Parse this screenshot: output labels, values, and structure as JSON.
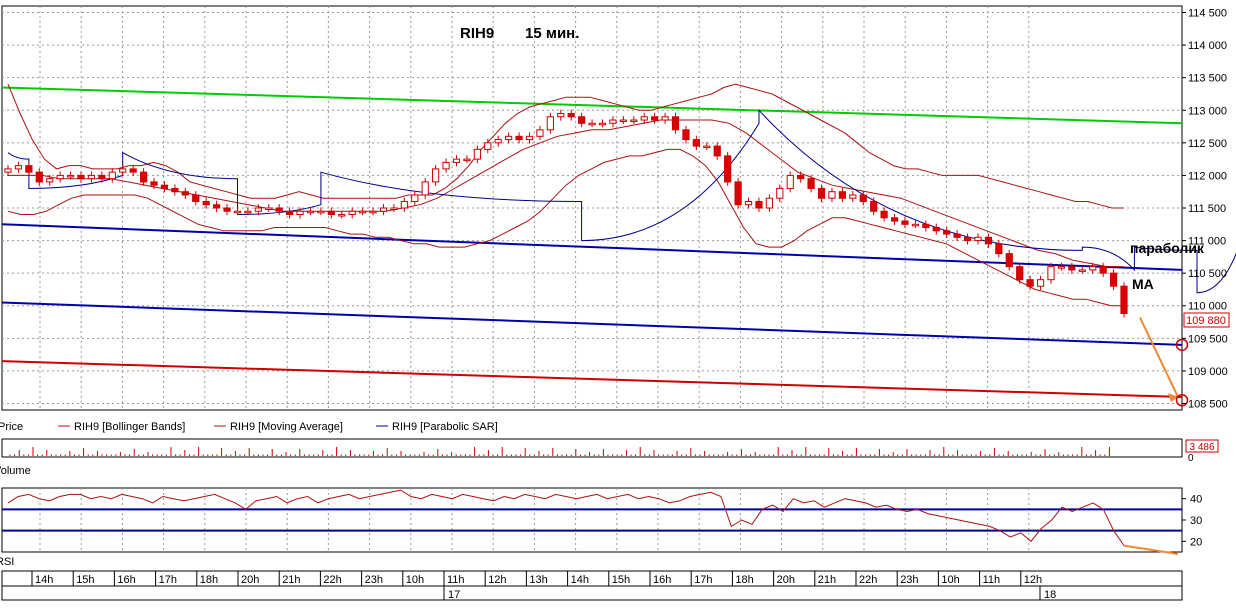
{
  "chart_data": [
    {
      "type": "candlestick",
      "title": "RIH9",
      "timeframe": "15 мин.",
      "y_ticks": [
        "114 500",
        "114 000",
        "113 500",
        "113 000",
        "112 500",
        "112 000",
        "111 500",
        "111 000",
        "110 500",
        "110 000",
        "109 500",
        "109 000",
        "108 500"
      ],
      "ylim": [
        108400,
        114600
      ],
      "last_price_label": "109 880",
      "last_price": 109880,
      "legend": [
        {
          "name": "Price",
          "color": "#cc0000"
        },
        {
          "name": "RIH9 [Bollinger Bands]",
          "color": "#aa1111"
        },
        {
          "name": "RIH9 [Moving Average]",
          "color": "#aa1111"
        },
        {
          "name": "RIH9 [Parabolic SAR]",
          "color": "#00008b"
        }
      ],
      "annotations": [
        "параболик",
        "МА"
      ],
      "closes": [
        112100,
        112150,
        112050,
        111900,
        111950,
        112000,
        112000,
        111950,
        112000,
        111950,
        112050,
        112100,
        112050,
        111900,
        111850,
        111800,
        111750,
        111700,
        111600,
        111550,
        111500,
        111450,
        111450,
        111450,
        111500,
        111500,
        111450,
        111400,
        111450,
        111450,
        111450,
        111400,
        111400,
        111450,
        111450,
        111450,
        111500,
        111500,
        111600,
        111700,
        111900,
        112100,
        112200,
        112250,
        112250,
        112400,
        112500,
        112550,
        112600,
        112550,
        112600,
        112700,
        112900,
        112950,
        112900,
        112800,
        112800,
        112800,
        112850,
        112850,
        112850,
        112900,
        112850,
        112900,
        112700,
        112550,
        112450,
        112450,
        112300,
        111900,
        111550,
        111600,
        111500,
        111650,
        111800,
        112000,
        111950,
        111800,
        111650,
        111750,
        111650,
        111700,
        111600,
        111450,
        111350,
        111300,
        111250,
        111250,
        111200,
        111150,
        111100,
        111050,
        111000,
        111050,
        110950,
        110800,
        110600,
        110400,
        110300,
        110400,
        110600,
        110600,
        110550,
        110550,
        110600,
        110500,
        110300,
        109880
      ],
      "bb_upper": [
        113400,
        112950,
        112550,
        112250,
        112100,
        112150,
        112150,
        112100,
        112100,
        112100,
        112150,
        112150,
        112200,
        112150,
        112050,
        111900,
        111850,
        111800,
        111750,
        111700,
        111650,
        111650,
        111650,
        111700,
        111750,
        111700,
        111650,
        111650,
        111650,
        111650,
        111650,
        111650,
        111650,
        111700,
        111700,
        111700,
        111800,
        111950,
        112150,
        112400,
        112600,
        112800,
        112950,
        113050,
        113100,
        113150,
        113200,
        113200,
        113200,
        113150,
        113100,
        113050,
        113000,
        113000,
        113050,
        113100,
        113150,
        113200,
        113250,
        113350,
        113400,
        113350,
        113300,
        113250,
        113150,
        113050,
        112950,
        112850,
        112750,
        112650,
        112500,
        112350,
        112250,
        112150,
        112100,
        112100,
        112050,
        112000,
        112000,
        112000,
        112000,
        111950,
        111900,
        111850,
        111800,
        111750,
        111700,
        111650,
        111600,
        111600,
        111550,
        111500,
        111500
      ],
      "bb_lower": [
        111450,
        111400,
        111400,
        111450,
        111550,
        111650,
        111700,
        111700,
        111700,
        111700,
        111700,
        111650,
        111550,
        111450,
        111350,
        111250,
        111200,
        111150,
        111150,
        111150,
        111150,
        111200,
        111200,
        111200,
        111200,
        111200,
        111150,
        111100,
        111100,
        111050,
        111050,
        111000,
        110950,
        110950,
        110900,
        110900,
        110900,
        110950,
        111000,
        111100,
        111200,
        111300,
        111450,
        111650,
        111850,
        112000,
        112100,
        112200,
        112250,
        112300,
        112300,
        112350,
        112400,
        112400,
        112300,
        112150,
        111900,
        111550,
        111200,
        110950,
        110900,
        110900,
        111000,
        111150,
        111250,
        111350,
        111350,
        111300,
        111250,
        111200,
        111150,
        111100,
        111050,
        111000,
        110950,
        110850,
        110750,
        110650,
        110550,
        110450,
        110350,
        110250,
        110200,
        110150,
        110100,
        110100,
        110050,
        110000,
        110000
      ],
      "ma": [
        112000,
        112000,
        112000,
        111950,
        111950,
        111950,
        111950,
        111900,
        111850,
        111800,
        111750,
        111700,
        111650,
        111600,
        111550,
        111500,
        111450,
        111450,
        111450,
        111450,
        111450,
        111450,
        111450,
        111500,
        111550,
        111650,
        111800,
        111950,
        112100,
        112250,
        112400,
        112500,
        112600,
        112650,
        112700,
        112700,
        112750,
        112800,
        112850,
        112850,
        112850,
        112850,
        112800,
        112650,
        112450,
        112250,
        112050,
        111950,
        111850,
        111800,
        111750,
        111700,
        111650,
        111550,
        111450,
        111350,
        111250,
        111150,
        111050,
        110950,
        110850,
        110800,
        110700,
        110650,
        110600,
        110600
      ],
      "sar_segments": [
        {
          "dir": "down",
          "from": 0,
          "to": 2,
          "start": 112350,
          "end": 112250
        },
        {
          "dir": "up",
          "from": 2,
          "to": 11,
          "start": 111800,
          "end": 112000
        },
        {
          "dir": "down",
          "from": 11,
          "to": 22,
          "start": 112350,
          "end": 111950
        },
        {
          "dir": "up",
          "from": 22,
          "to": 30,
          "start": 111400,
          "end": 111550
        },
        {
          "dir": "down",
          "from": 30,
          "to": 55,
          "start": 112050,
          "end": 111600
        },
        {
          "dir": "up",
          "from": 55,
          "to": 72,
          "start": 111000,
          "end": 112800
        },
        {
          "dir": "down",
          "from": 72,
          "to": 103,
          "start": 113000,
          "end": 110850
        },
        {
          "dir": "up",
          "from": 103,
          "to": 108,
          "start": 110900,
          "end": 110550
        },
        {
          "dir": "down",
          "from": 108,
          "to": 114,
          "start": 110900,
          "end": 110850
        },
        {
          "dir": "up",
          "from": 114,
          "to": 118,
          "start": 110200,
          "end": 110900
        }
      ],
      "trend_lines": [
        {
          "color": "#00cc00",
          "start": 113350,
          "end": 112800
        },
        {
          "color": "#0000aa",
          "start": 111250,
          "end": 110550
        },
        {
          "color": "#0000aa",
          "start": 110050,
          "end": 109400
        },
        {
          "color": "#cc0000",
          "start": 109150,
          "end": 108600
        }
      ],
      "target_arrow": {
        "from": 109880,
        "to": 108600
      },
      "target_circles": [
        109400,
        108550
      ]
    },
    {
      "type": "bar",
      "name": "Volume",
      "axis_tick": "0",
      "last_value_label": "3 486"
    },
    {
      "type": "line",
      "name": "RSI",
      "ylim": [
        15,
        45
      ],
      "y_ticks": [
        "40",
        "30",
        "20"
      ],
      "levels": [
        35,
        25
      ],
      "values": [
        38,
        41,
        42,
        40,
        39,
        41,
        42,
        42,
        40,
        41,
        40,
        42,
        41,
        40,
        38,
        41,
        40,
        39,
        40,
        41,
        42,
        40,
        38,
        35,
        39,
        40,
        41,
        38,
        40,
        41,
        38,
        40,
        41,
        42,
        40,
        41,
        42,
        43,
        44,
        41,
        40,
        42,
        41,
        40,
        42,
        41,
        40,
        39,
        41,
        40,
        42,
        41,
        40,
        42,
        41,
        40,
        41,
        42,
        40,
        41,
        42,
        40,
        41,
        40,
        38,
        39,
        41,
        42,
        43,
        41,
        27,
        30,
        28,
        35,
        37,
        34,
        40,
        38,
        39,
        36,
        38,
        40,
        39,
        38,
        36,
        37,
        35,
        34,
        35,
        33,
        32,
        31,
        30,
        29,
        28,
        27,
        25,
        22,
        24,
        20,
        26,
        30,
        36,
        34,
        36,
        38,
        35,
        25,
        18
      ]
    }
  ],
  "time_axis": {
    "hours": [
      "14h",
      "15h",
      "16h",
      "17h",
      "18h",
      "20h",
      "21h",
      "22h",
      "23h",
      "10h",
      "11h",
      "12h",
      "13h",
      "14h",
      "15h",
      "16h",
      "17h",
      "18h",
      "20h",
      "21h",
      "22h",
      "23h",
      "10h",
      "11h",
      "12h"
    ],
    "dates": [
      "17",
      "18"
    ]
  },
  "colors": {
    "up_candle": "#ffffff",
    "down_candle": "#dd0000",
    "bollinger": "#aa1111",
    "sar": "#00008b",
    "arrow": "#ee8833",
    "grid": "#999999"
  }
}
